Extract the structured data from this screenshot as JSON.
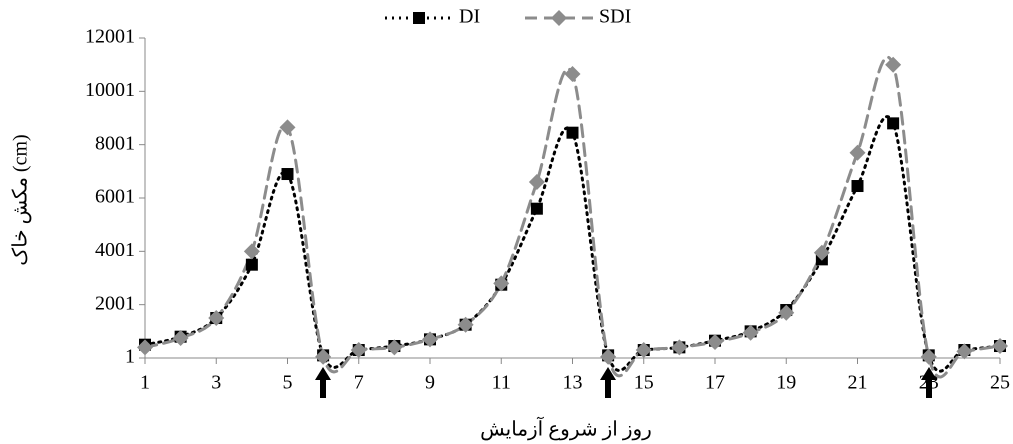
{
  "chart_data": {
    "type": "line",
    "xlabel": "روز از شروع آزمایش",
    "ylabel": "مکش خاک (cm)",
    "x": [
      1,
      2,
      3,
      4,
      5,
      6,
      7,
      8,
      9,
      10,
      11,
      12,
      13,
      14,
      15,
      16,
      17,
      18,
      19,
      20,
      21,
      22,
      23,
      24,
      25
    ],
    "series": [
      {
        "name": "DI",
        "color": "#000000",
        "marker": "square",
        "dash": "dotted",
        "values": [
          500,
          800,
          1500,
          3500,
          6900,
          100,
          300,
          450,
          700,
          1250,
          2750,
          5600,
          8450,
          100,
          300,
          400,
          650,
          1000,
          1800,
          3700,
          6450,
          8800,
          100,
          300,
          450
        ]
      },
      {
        "name": "SDI",
        "color": "#8c8c8c",
        "marker": "diamond",
        "dash": "dashed",
        "values": [
          400,
          750,
          1500,
          4000,
          8650,
          50,
          300,
          400,
          700,
          1250,
          2800,
          6600,
          10650,
          50,
          300,
          400,
          600,
          950,
          1700,
          3950,
          7700,
          11000,
          50,
          250,
          450
        ]
      }
    ],
    "xlim": [
      1,
      25
    ],
    "xticks": [
      1,
      3,
      5,
      7,
      9,
      11,
      13,
      15,
      17,
      19,
      21,
      23,
      25
    ],
    "ylim": [
      1,
      12001
    ],
    "yticks": [
      1,
      2001,
      4001,
      6001,
      8001,
      10001,
      12001
    ],
    "grid": false,
    "legend": "top"
  }
}
